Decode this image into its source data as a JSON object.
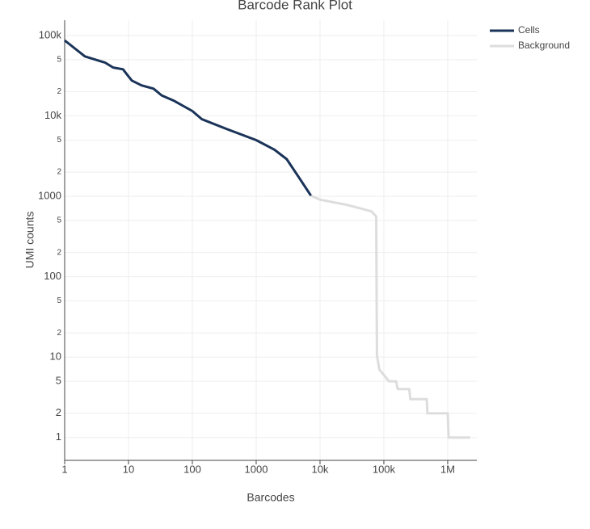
{
  "chart_data": {
    "type": "line",
    "title": "Barcode Rank Plot",
    "x_label": "Barcodes",
    "y_label": "UMI counts",
    "log_x": true,
    "log_y": true,
    "grid": true,
    "legend": "top-right",
    "xlim": [
      1,
      2860000
    ],
    "ylim": [
      0.52,
      155000
    ],
    "xticks": [
      1,
      10,
      100,
      1000,
      {
        "value": 10000,
        "label": "10k"
      },
      {
        "value": 100000,
        "label": "100k"
      },
      {
        "value": 1000000,
        "label": "1M"
      }
    ],
    "yticks": [
      1,
      2,
      5,
      10,
      {
        "value": 20,
        "label": "2"
      },
      {
        "value": 50,
        "label": "5"
      },
      100,
      {
        "value": 200,
        "label": "2"
      },
      {
        "value": 500,
        "label": "5"
      },
      1000,
      {
        "value": 2000,
        "label": "2"
      },
      {
        "value": 5000,
        "label": "5"
      },
      {
        "value": 10000,
        "label": "10k"
      },
      {
        "value": 20000,
        "label": "2"
      },
      {
        "value": 50000,
        "label": "5"
      },
      {
        "value": 100000,
        "label": "100k"
      }
    ],
    "series": [
      {
        "name": "Cells",
        "color": "#1a3358",
        "x": [
          1,
          2.07,
          4.3,
          5.75,
          8.2,
          9.4,
          11.3,
          16,
          24.7,
          33,
          51,
          100,
          141,
          339,
          1000,
          1930,
          3000,
          4700,
          7200
        ],
        "values": [
          87000,
          55000,
          46000,
          40000,
          38000,
          33000,
          27500,
          24000,
          21800,
          18000,
          15500,
          11500,
          9100,
          6900,
          5000,
          3800,
          2900,
          1700,
          1020
        ]
      },
      {
        "name": "Background",
        "color": "#dddddd",
        "x": [
          7200,
          9900,
          27000,
          64000,
          76000,
          78000,
          85000,
          100000,
          120000,
          155000,
          165000,
          250000,
          260000,
          470000,
          480000,
          1000000,
          1030000,
          2250000
        ],
        "values": [
          1020,
          910,
          780,
          650,
          560,
          10.5,
          7,
          6,
          5,
          5,
          4,
          4,
          3,
          3,
          2,
          2,
          1,
          1
        ]
      }
    ]
  }
}
